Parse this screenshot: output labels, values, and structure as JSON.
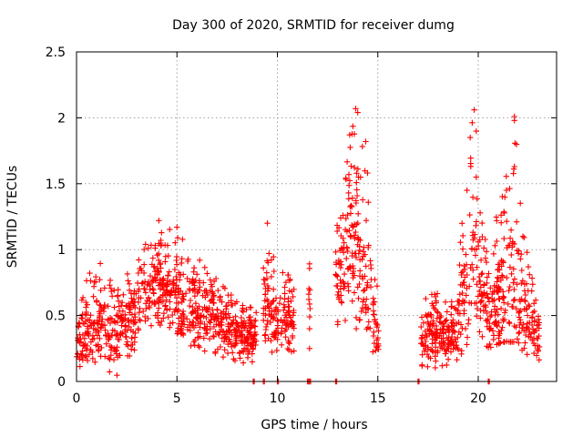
{
  "chart_data": {
    "type": "scatter",
    "title": "Day 300 of 2020, SRMTID for receiver dumg",
    "xlabel": "GPS time / hours",
    "ylabel": "SRMTID / TECUs",
    "xlim": [
      0,
      23.9
    ],
    "ylim": [
      0,
      2.5
    ],
    "xticks": [
      0,
      5,
      10,
      15,
      20
    ],
    "xtick_labels": [
      "0",
      "5",
      "10",
      "15",
      "20"
    ],
    "yticks": [
      0,
      0.5,
      1,
      1.5,
      2,
      2.5
    ],
    "ytick_labels": [
      "0",
      "0.5",
      "1",
      "1.5",
      "2",
      "2.5"
    ],
    "grid": true,
    "marker": "+",
    "series": [
      {
        "name": "SRMTID",
        "color": "#ff0000",
        "envelope": [
          {
            "x": 0.0,
            "mean": 0.35,
            "min": 0.1,
            "max": 0.6
          },
          {
            "x": 1.0,
            "mean": 0.45,
            "min": 0.15,
            "max": 0.95
          },
          {
            "x": 2.0,
            "mean": 0.35,
            "min": 0.02,
            "max": 0.7
          },
          {
            "x": 3.0,
            "mean": 0.55,
            "min": 0.25,
            "max": 0.95
          },
          {
            "x": 3.5,
            "mean": 0.7,
            "min": 0.35,
            "max": 1.1
          },
          {
            "x": 4.2,
            "mean": 0.75,
            "min": 0.4,
            "max": 1.22
          },
          {
            "x": 5.0,
            "mean": 0.6,
            "min": 0.3,
            "max": 1.17
          },
          {
            "x": 6.0,
            "mean": 0.55,
            "min": 0.25,
            "max": 0.95
          },
          {
            "x": 7.0,
            "mean": 0.45,
            "min": 0.2,
            "max": 0.8
          },
          {
            "x": 8.0,
            "mean": 0.35,
            "min": 0.15,
            "max": 0.6
          },
          {
            "x": 8.9,
            "mean": 0.35,
            "min": 0.1,
            "max": 0.55
          },
          {
            "x": 9.4,
            "mean": 0.5,
            "min": 0.25,
            "max": 1.2
          },
          {
            "x": 10.0,
            "mean": 0.5,
            "min": 0.2,
            "max": 0.9
          },
          {
            "x": 10.8,
            "mean": 0.45,
            "min": 0.15,
            "max": 0.8
          },
          {
            "x": 13.0,
            "mean": 0.8,
            "min": 0.3,
            "max": 1.2
          },
          {
            "x": 13.5,
            "mean": 0.9,
            "min": 0.4,
            "max": 1.8
          },
          {
            "x": 14.0,
            "mean": 1.0,
            "min": 0.4,
            "max": 2.07
          },
          {
            "x": 14.5,
            "mean": 0.6,
            "min": 0.2,
            "max": 1.6
          },
          {
            "x": 15.0,
            "mean": 0.4,
            "min": 0.2,
            "max": 0.7
          },
          {
            "x": 17.2,
            "mean": 0.35,
            "min": 0.1,
            "max": 0.75
          },
          {
            "x": 18.0,
            "mean": 0.35,
            "min": 0.1,
            "max": 0.7
          },
          {
            "x": 18.8,
            "mean": 0.35,
            "min": 0.1,
            "max": 0.6
          },
          {
            "x": 19.5,
            "mean": 0.8,
            "min": 0.3,
            "max": 1.9
          },
          {
            "x": 19.8,
            "mean": 0.9,
            "min": 0.4,
            "max": 2.06
          },
          {
            "x": 20.5,
            "mean": 0.55,
            "min": 0.25,
            "max": 1.0
          },
          {
            "x": 21.2,
            "mean": 0.6,
            "min": 0.3,
            "max": 1.45
          },
          {
            "x": 21.8,
            "mean": 0.7,
            "min": 0.3,
            "max": 2.01
          },
          {
            "x": 22.4,
            "mean": 0.5,
            "min": 0.2,
            "max": 1.0
          },
          {
            "x": 23.0,
            "mean": 0.35,
            "min": 0.15,
            "max": 0.55
          }
        ],
        "data_segments": [
          [
            0.0,
            8.95
          ],
          [
            9.3,
            10.85
          ],
          [
            11.55,
            11.65
          ],
          [
            12.9,
            15.05
          ],
          [
            17.15,
            23.05
          ]
        ],
        "outliers": [
          {
            "x": 4.1,
            "y": 1.22
          },
          {
            "x": 5.0,
            "y": 1.17
          },
          {
            "x": 9.5,
            "y": 1.2
          },
          {
            "x": 11.6,
            "y": 0.4
          },
          {
            "x": 11.6,
            "y": 0.25
          },
          {
            "x": 13.9,
            "y": 2.07
          },
          {
            "x": 14.0,
            "y": 2.04
          },
          {
            "x": 13.6,
            "y": 1.87
          },
          {
            "x": 14.4,
            "y": 1.82
          },
          {
            "x": 19.8,
            "y": 2.06
          },
          {
            "x": 19.6,
            "y": 1.85
          },
          {
            "x": 19.9,
            "y": 1.55
          },
          {
            "x": 21.8,
            "y": 2.01
          },
          {
            "x": 21.8,
            "y": 1.98
          },
          {
            "x": 21.8,
            "y": 1.63
          },
          {
            "x": 21.4,
            "y": 1.45
          }
        ],
        "zero_points_x": [
          8.8,
          9.3,
          10.0,
          11.5,
          11.6,
          12.9,
          17.0,
          20.5
        ]
      }
    ]
  }
}
